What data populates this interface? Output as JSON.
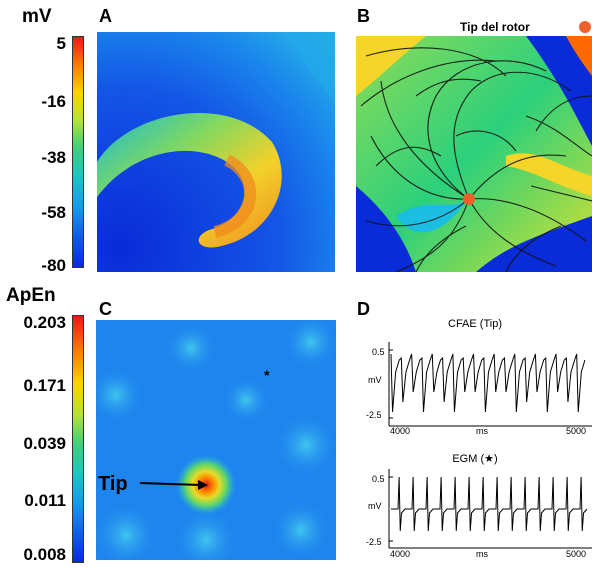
{
  "panelA": {
    "letter": "A",
    "unit": "mV",
    "colorbar_ticks": [
      "5",
      "-16",
      "-38",
      "-58",
      "-80"
    ]
  },
  "panelB": {
    "letter": "B",
    "legend": "Tip del rotor",
    "legend_color": "#f0602a"
  },
  "panelC": {
    "letter": "C",
    "unit": "ApEn",
    "colorbar_ticks": [
      "0.203",
      "0.171",
      "0.039",
      "0.011",
      "0.008"
    ],
    "tip_label": "Tip",
    "marker": "*"
  },
  "panelD": {
    "letter": "D",
    "chart_data": [
      {
        "type": "line",
        "title": "CFAE (Tip)",
        "ylabel": "mV",
        "xlabel": "ms",
        "x_ticks": [
          "4000",
          "5000"
        ],
        "y_ticks": [
          "0.5",
          "-2.5"
        ],
        "xlim": [
          4000,
          5000
        ],
        "ylim": [
          -2.5,
          0.5
        ],
        "signal": "irregular fractionated deflections, ~19 per 1000 ms"
      },
      {
        "type": "line",
        "title": "EGM (★)",
        "ylabel": "mV",
        "xlabel": "ms",
        "x_ticks": [
          "4000",
          "5000"
        ],
        "y_ticks": [
          "0.5",
          "-2.5"
        ],
        "xlim": [
          4000,
          5000
        ],
        "ylim": [
          -2.5,
          0.5
        ],
        "signal": "regular biphasic spikes, ~14 per 1000 ms"
      }
    ]
  },
  "colors": {
    "jet_low": "#0a2bd8",
    "jet_high": "#e41a1a",
    "orange_dot": "#f0602a"
  }
}
